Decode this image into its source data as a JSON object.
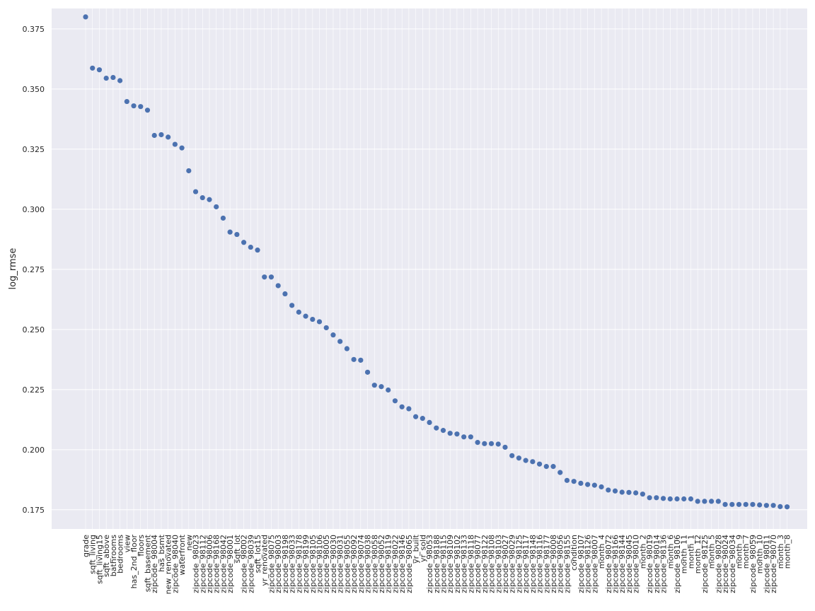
{
  "chart_data": {
    "type": "scatter",
    "ylabel": "log_rmse",
    "xlabel": "",
    "title": "",
    "grid": true,
    "ylim": [
      0.167,
      0.3835
    ],
    "yticks": [
      0.175,
      0.2,
      0.225,
      0.25,
      0.275,
      0.3,
      0.325,
      0.35,
      0.375
    ],
    "ytick_labels": [
      "0.175",
      "0.200",
      "0.225",
      "0.250",
      "0.275",
      "0.300",
      "0.325",
      "0.350",
      "0.375"
    ],
    "tick_label_every": 1,
    "colors": {
      "plot_background": "#eaeaf2",
      "grid": "#ffffff",
      "marker": "#4c72b0"
    },
    "categories": [
      "grade",
      "sqft_living",
      "sqft_living15",
      "sqft_above",
      "bathrooms",
      "bedrooms",
      "view",
      "has_2nd_floor",
      "floors",
      "sqft_basement",
      "zipcode_98004",
      "has_bsmt",
      "new_renovated",
      "zipcode_98040",
      "waterfront",
      "new",
      "zipcode_98023",
      "zipcode_98112",
      "zipcode_98006",
      "zipcode_98168",
      "zipcode_98042",
      "zipcode_98001",
      "sqft_lot",
      "zipcode_98002",
      "zipcode_98039",
      "sqft_lot15",
      "yr_renovated",
      "zipcode_98075",
      "zipcode_98003",
      "zipcode_98198",
      "zipcode_98033",
      "zipcode_98178",
      "zipcode_98199",
      "zipcode_98105",
      "zipcode_98106",
      "zipcode_98005",
      "zipcode_98030",
      "zipcode_98031",
      "zipcode_98055",
      "zipcode_98092",
      "zipcode_98074",
      "zipcode_98038",
      "zipcode_98058",
      "zipcode_98052",
      "zipcode_98119",
      "zipcode_98022",
      "zipcode_98146",
      "zipcode_98065",
      "yr_built",
      "yr_sold",
      "zipcode_98053",
      "zipcode_98188",
      "zipcode_98115",
      "zipcode_98109",
      "zipcode_98102",
      "zipcode_98133",
      "zipcode_98118",
      "zipcode_98077",
      "zipcode_98122",
      "zipcode_98108",
      "zipcode_98103",
      "zipcode_98027",
      "zipcode_98029",
      "zipcode_98125",
      "zipcode_98117",
      "zipcode_98148",
      "zipcode_98116",
      "zipcode_98177",
      "zipcode_98008",
      "zipcode_98056",
      "zipcode_98155",
      "condition",
      "zipcode_98107",
      "zipcode_98126",
      "zipcode_98007",
      "month_4",
      "zipcode_98072",
      "zipcode_98166",
      "zipcode_98144",
      "zipcode_98045",
      "zipcode_98010",
      "month_2",
      "zipcode_98019",
      "zipcode_98014",
      "zipcode_98136",
      "month_6",
      "zipcode_98106",
      "month_11",
      "month_1",
      "month_12",
      "zipcode_98125",
      "month_5",
      "zipcode_98028",
      "zipcode_98024",
      "zipcode_98034",
      "month_9",
      "month_7",
      "zipcode_98059",
      "month_10",
      "zipcode_98011",
      "zipcode_98070",
      "month_3",
      "month_8"
    ],
    "values": [
      0.38,
      0.3587,
      0.358,
      0.3545,
      0.3548,
      0.3535,
      0.3448,
      0.343,
      0.3427,
      0.3412,
      0.3307,
      0.331,
      0.33,
      0.327,
      0.3255,
      0.316,
      0.3073,
      0.3048,
      0.304,
      0.301,
      0.2963,
      0.2905,
      0.2895,
      0.2862,
      0.2842,
      0.283,
      0.2718,
      0.2718,
      0.2682,
      0.2648,
      0.26,
      0.2572,
      0.2555,
      0.2542,
      0.2532,
      0.2507,
      0.2477,
      0.245,
      0.242,
      0.2375,
      0.2372,
      0.2322,
      0.2268,
      0.2262,
      0.2248,
      0.2203,
      0.2178,
      0.217,
      0.2137,
      0.213,
      0.2113,
      0.209,
      0.208,
      0.2068,
      0.2065,
      0.2053,
      0.2053,
      0.203,
      0.2025,
      0.2025,
      0.2023,
      0.201,
      0.1975,
      0.1965,
      0.1955,
      0.195,
      0.194,
      0.193,
      0.193,
      0.1905,
      0.1872,
      0.1868,
      0.186,
      0.1855,
      0.1852,
      0.1845,
      0.1832,
      0.1828,
      0.1823,
      0.1822,
      0.182,
      0.1815,
      0.18,
      0.18,
      0.1797,
      0.1795,
      0.1795,
      0.1795,
      0.1795,
      0.1785,
      0.1785,
      0.1785,
      0.1785,
      0.1772,
      0.1772,
      0.1772,
      0.1772,
      0.1772,
      0.177,
      0.1768,
      0.1768,
      0.1763,
      0.1762
    ]
  }
}
